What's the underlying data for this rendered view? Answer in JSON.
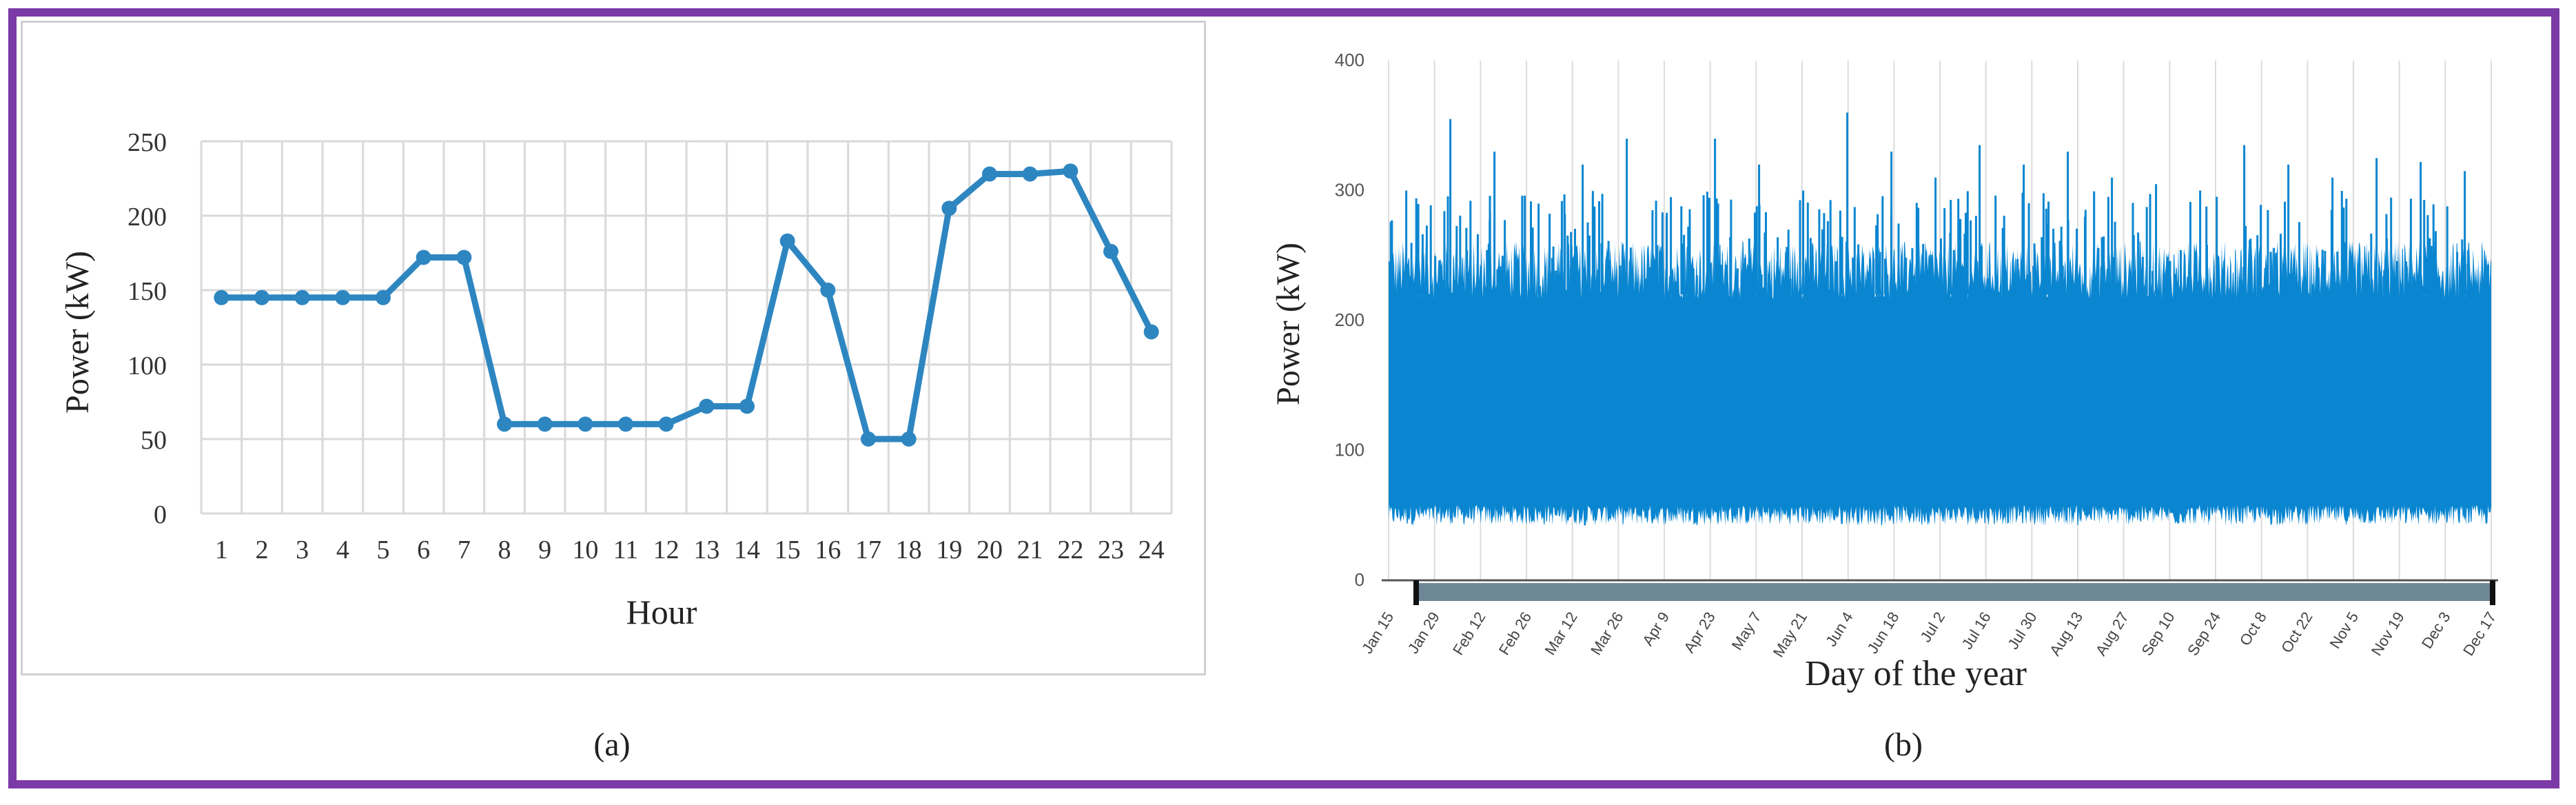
{
  "colors": {
    "frame": "#7b3aa6",
    "line": "#2e86c1",
    "area": "#0a86d1",
    "grid": "#d9d9d9",
    "scrollbar": "#6e8797"
  },
  "chart_data": [
    {
      "type": "line",
      "panel_label": "(a)",
      "xlabel": "Hour",
      "ylabel": "Power (kW)",
      "x": [
        1,
        2,
        3,
        4,
        5,
        6,
        7,
        8,
        9,
        10,
        11,
        12,
        13,
        14,
        15,
        16,
        17,
        18,
        19,
        20,
        21,
        22,
        23,
        24
      ],
      "values": [
        145,
        145,
        145,
        145,
        145,
        172,
        172,
        60,
        60,
        60,
        60,
        60,
        72,
        72,
        183,
        150,
        50,
        50,
        205,
        228,
        228,
        230,
        176,
        122
      ],
      "ylim": [
        0,
        250
      ],
      "yticks": [
        0,
        50,
        100,
        150,
        200,
        250
      ],
      "grid": true
    },
    {
      "type": "area",
      "panel_label": "(b)",
      "xlabel": "Day of the year",
      "ylabel": "Power (kW)",
      "ylim": [
        0,
        400
      ],
      "yticks": [
        0,
        100,
        200,
        300,
        400
      ],
      "x_tick_labels": [
        "Jan 15",
        "Jan 29",
        "Feb 12",
        "Feb 26",
        "Mar 12",
        "Mar 26",
        "Apr 9",
        "Apr 23",
        "May 7",
        "May 21",
        "Jun 4",
        "Jun 18",
        "Jul 2",
        "Jul 16",
        "Jul 30",
        "Aug 13",
        "Aug 27",
        "Sep 10",
        "Sep 24",
        "Oct 8",
        "Oct 22",
        "Nov 5",
        "Nov 19",
        "Dec 3",
        "Dec 17"
      ],
      "series": [
        {
          "typical_low": 50,
          "typical_high": 230,
          "peak_values": [
            300,
            355,
            330,
            290,
            320,
            340,
            295,
            340,
            320,
            300,
            360,
            330,
            310,
            335,
            320,
            330,
            310,
            305,
            300,
            335,
            320,
            310,
            325,
            322,
            315
          ]
        }
      ],
      "grid": true
    }
  ]
}
